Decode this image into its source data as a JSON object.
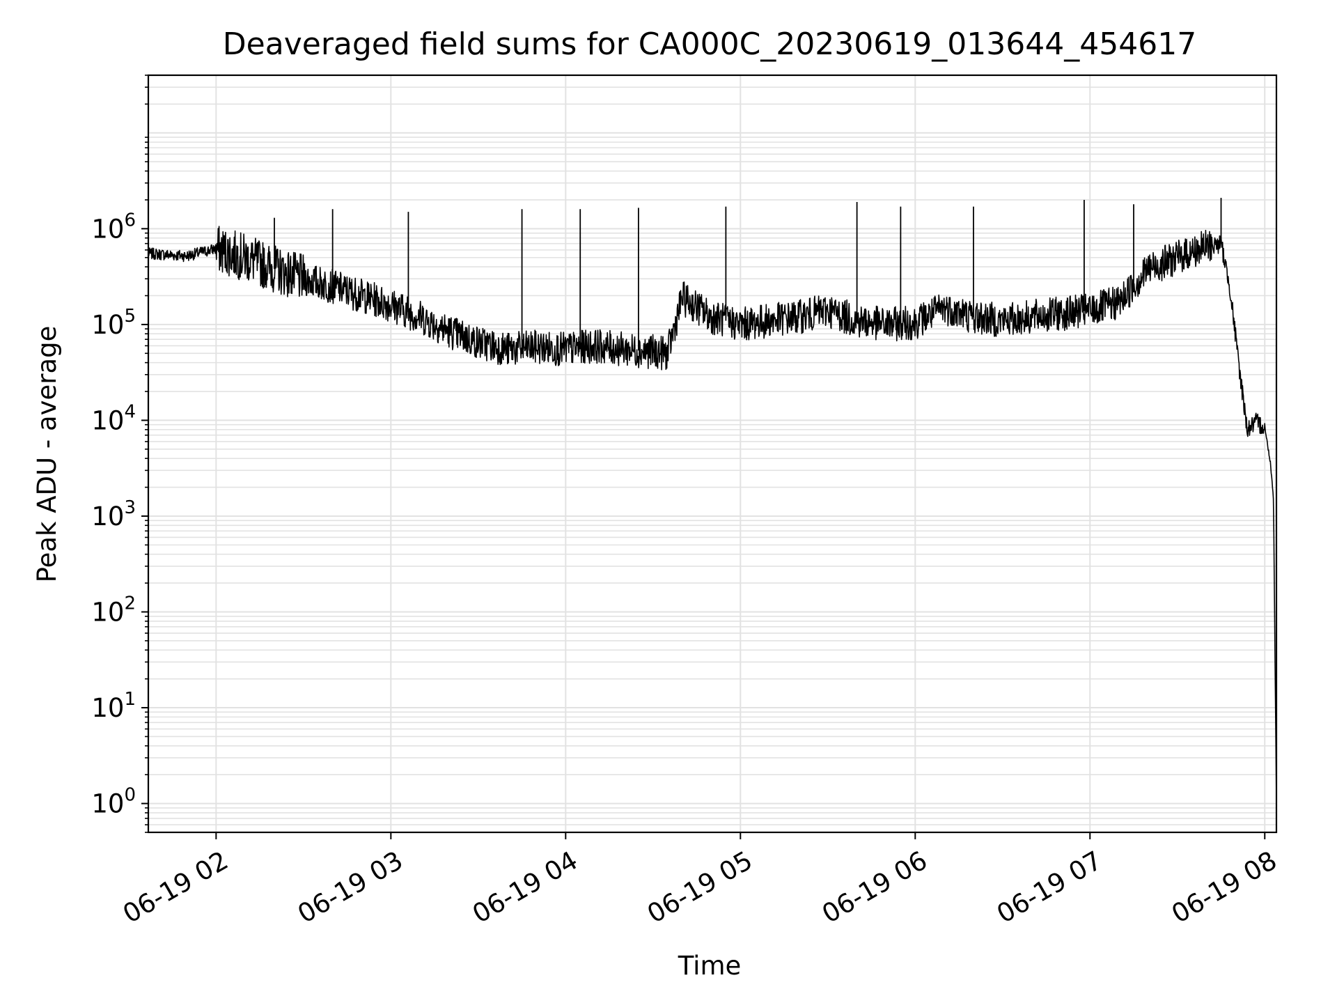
{
  "chart_data": {
    "type": "line",
    "title": "Deaveraged field sums for CA000C_20230619_013644_454617",
    "xlabel": "Time",
    "ylabel": "Peak ADU - average",
    "yscale": "log",
    "xlim": [
      "06-19 01:36:44",
      "06-19 08:04"
    ],
    "ylim": [
      0.5,
      40000000
    ],
    "grid": true,
    "line_color": "#000000",
    "grid_color": "#e2e2e2",
    "x_ticks": [
      "06-19 02",
      "06-19 03",
      "06-19 04",
      "06-19 05",
      "06-19 06",
      "06-19 07",
      "06-19 08"
    ],
    "x_tick_hours": [
      2,
      3,
      4,
      5,
      6,
      7,
      8
    ],
    "y_ticks": [
      {
        "base": "10",
        "exp": "0",
        "value": 1
      },
      {
        "base": "10",
        "exp": "1",
        "value": 10
      },
      {
        "base": "10",
        "exp": "2",
        "value": 100
      },
      {
        "base": "10",
        "exp": "3",
        "value": 1000
      },
      {
        "base": "10",
        "exp": "4",
        "value": 10000
      },
      {
        "base": "10",
        "exp": "5",
        "value": 100000
      },
      {
        "base": "10",
        "exp": "6",
        "value": 1000000
      }
    ],
    "series": [
      {
        "name": "",
        "x": [
          "06-19 01:36:44",
          "06-19 01:50",
          "06-19 02:00",
          "06-19 02:10",
          "06-19 02:20",
          "06-19 02:30",
          "06-19 02:40",
          "06-19 02:50",
          "06-19 03:00",
          "06-19 03:10",
          "06-19 03:20",
          "06-19 03:30",
          "06-19 03:40",
          "06-19 03:50",
          "06-19 04:00",
          "06-19 04:10",
          "06-19 04:20",
          "06-19 04:30",
          "06-19 04:35",
          "06-19 04:40",
          "06-19 04:50",
          "06-19 05:00",
          "06-19 05:10",
          "06-19 05:20",
          "06-19 05:30",
          "06-19 05:40",
          "06-19 05:50",
          "06-19 06:00",
          "06-19 06:10",
          "06-19 06:20",
          "06-19 06:30",
          "06-19 06:40",
          "06-19 06:50",
          "06-19 07:00",
          "06-19 07:10",
          "06-19 07:20",
          "06-19 07:30",
          "06-19 07:40",
          "06-19 07:45",
          "06-19 07:48",
          "06-19 07:51",
          "06-19 07:54",
          "06-19 07:57",
          "06-19 08:00",
          "06-19 08:02",
          "06-19 08:03",
          "06-19 08:04"
        ],
        "y": [
          550000,
          520000,
          620000,
          500000,
          380000,
          300000,
          250000,
          200000,
          160000,
          120000,
          85000,
          65000,
          55000,
          58000,
          55000,
          60000,
          55000,
          52000,
          50000,
          190000,
          120000,
          100000,
          110000,
          120000,
          140000,
          110000,
          100000,
          105000,
          150000,
          120000,
          110000,
          120000,
          130000,
          140000,
          170000,
          380000,
          500000,
          650000,
          700000,
          250000,
          40000,
          8000,
          9500,
          8500,
          3500,
          1500,
          1
        ]
      }
    ],
    "spikes": [
      {
        "x": "06-19 02:20",
        "y": 1300000
      },
      {
        "x": "06-19 02:40",
        "y": 1600000
      },
      {
        "x": "06-19 03:06",
        "y": 1500000
      },
      {
        "x": "06-19 03:45",
        "y": 1600000
      },
      {
        "x": "06-19 04:05",
        "y": 1600000
      },
      {
        "x": "06-19 04:25",
        "y": 1650000
      },
      {
        "x": "06-19 04:55",
        "y": 1700000
      },
      {
        "x": "06-19 05:40",
        "y": 1900000
      },
      {
        "x": "06-19 05:55",
        "y": 1700000
      },
      {
        "x": "06-19 06:20",
        "y": 1700000
      },
      {
        "x": "06-19 06:58",
        "y": 2000000
      },
      {
        "x": "06-19 07:15",
        "y": 1800000
      },
      {
        "x": "06-19 07:45",
        "y": 2100000
      }
    ]
  }
}
